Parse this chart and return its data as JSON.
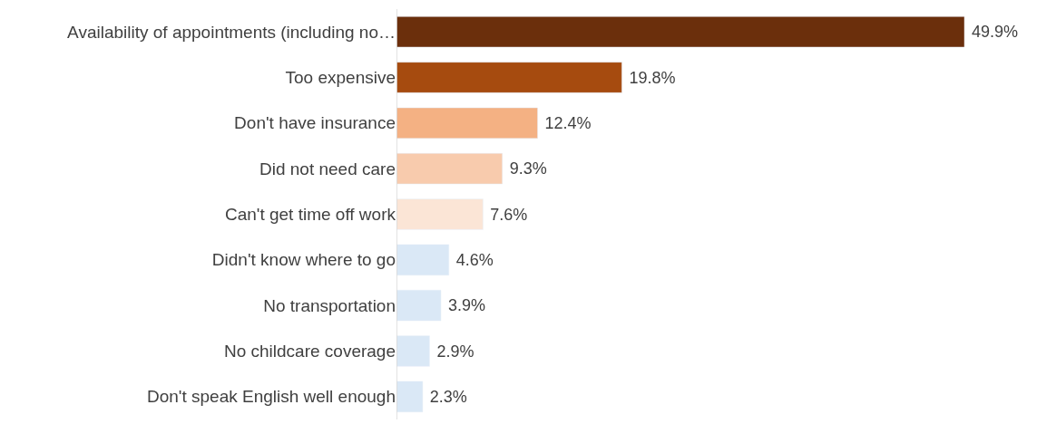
{
  "chart_data": {
    "type": "bar",
    "orientation": "horizontal",
    "categories": [
      "Availability of appointments (including no…",
      "Too expensive",
      "Don't have insurance",
      "Did not need care",
      "Can't get time off work",
      "Didn't know where to go",
      "No transportation",
      "No childcare coverage",
      "Don't speak English well enough"
    ],
    "values": [
      49.9,
      19.8,
      12.4,
      9.3,
      7.6,
      4.6,
      3.9,
      2.9,
      2.3
    ],
    "colors": [
      "#6b2f0c",
      "#a64b0f",
      "#f4b183",
      "#f8cbad",
      "#fbe5d6",
      "#dae8f6",
      "#dae8f6",
      "#dae8f6",
      "#dae8f6"
    ],
    "value_labels": [
      "49.9%",
      "19.8%",
      "12.4%",
      "9.3%",
      "7.6%",
      "4.6%",
      "3.9%",
      "2.9%",
      "2.3%"
    ],
    "data_labels": true
  }
}
